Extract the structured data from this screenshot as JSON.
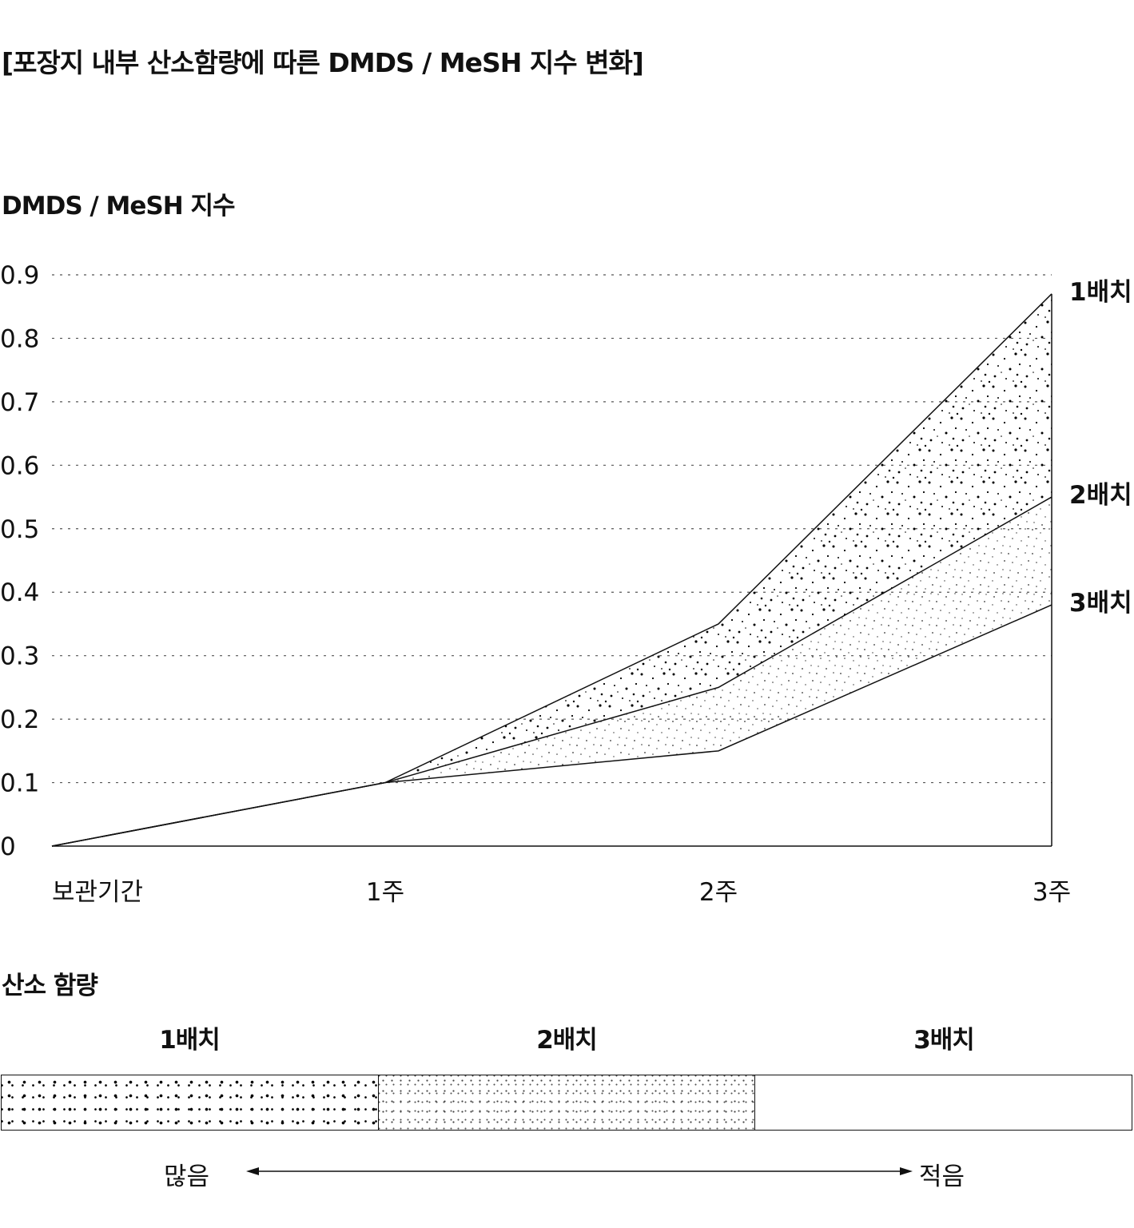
{
  "title": "[포장지 내부 산소함량에 따른 DMDS / MeSH 지수 변화]",
  "chart_data": {
    "type": "area",
    "ylabel": "DMDS / MeSH 지수",
    "ylim": [
      0,
      0.9
    ],
    "yticks": [
      "0",
      "0.1",
      "0.2",
      "0.3",
      "0.4",
      "0.5",
      "0.6",
      "0.7",
      "0.8",
      "0.9"
    ],
    "categories": [
      "보관기간",
      "1주",
      "2주",
      "3주"
    ],
    "grid": true,
    "series": [
      {
        "name": "1배치",
        "values": [
          0,
          0.1,
          0.35,
          0.87
        ],
        "fill": "dense-dots"
      },
      {
        "name": "2배치",
        "values": [
          0,
          0.1,
          0.25,
          0.55
        ],
        "fill": "light-dots"
      },
      {
        "name": "3배치",
        "values": [
          0,
          0.1,
          0.15,
          0.38
        ],
        "fill": "none"
      }
    ]
  },
  "legend": {
    "title": "산소 함량",
    "batches": [
      "1배치",
      "2배치",
      "3배치"
    ],
    "scale_left": "많음",
    "scale_right": "적음"
  },
  "colors": {
    "line": "#111111",
    "dots": "#000000",
    "grid": "#555555"
  }
}
